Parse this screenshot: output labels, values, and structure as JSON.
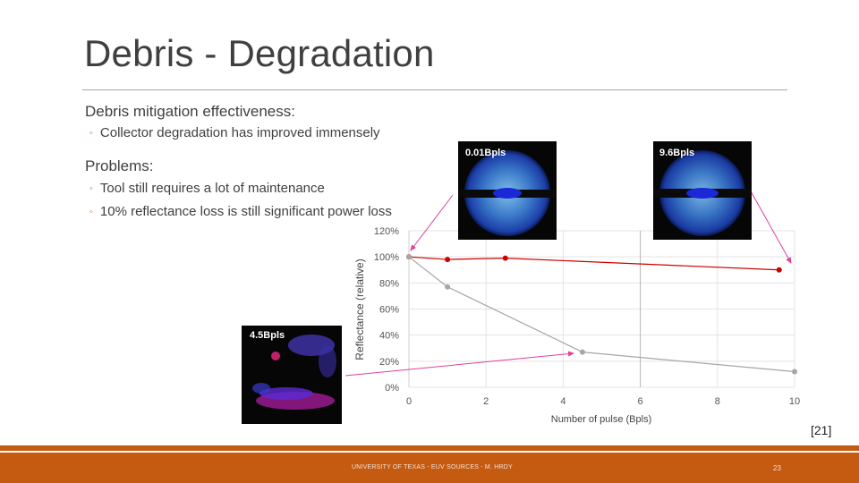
{
  "slide": {
    "title": "Debris - Degradation",
    "section1": {
      "heading": "Debris mitigation effectiveness:",
      "bullets": [
        "Collector degradation has improved immensely"
      ]
    },
    "section2": {
      "heading": "Problems:",
      "bullets": [
        "Tool still requires a lot of maintenance",
        "10% reflectance loss is still significant power loss"
      ]
    },
    "reference": "[21]",
    "footer": "UNIVERSITY OF TEXAS - EUV SOURCES - M. HRDY",
    "page_number": "23"
  },
  "images": {
    "left": "0.01Bpls",
    "right": "9.6Bpls",
    "bottom": "4.5Bpls"
  },
  "colors": {
    "accent": "#c55a11",
    "red_series": "#cc0000",
    "gray_series": "#a6a6a6",
    "arrow": "#e0409a"
  },
  "chart_data": {
    "type": "line",
    "xlabel": "Number of pulse (Bpls)",
    "ylabel": "Reflectance (relative)",
    "xlim": [
      0,
      10
    ],
    "ylim": [
      0,
      120
    ],
    "x_ticks": [
      "0",
      "2",
      "4",
      "6",
      "8",
      "10"
    ],
    "y_ticks": [
      "0%",
      "20%",
      "40%",
      "60%",
      "80%",
      "100%",
      "120%"
    ],
    "grid": true,
    "series": [
      {
        "color": "red",
        "x": [
          0,
          1,
          2.5,
          9.6
        ],
        "y": [
          100,
          98,
          99,
          90
        ]
      },
      {
        "color": "gray",
        "x": [
          0,
          1,
          4.5,
          10
        ],
        "y": [
          100,
          77,
          27,
          12
        ]
      }
    ]
  }
}
